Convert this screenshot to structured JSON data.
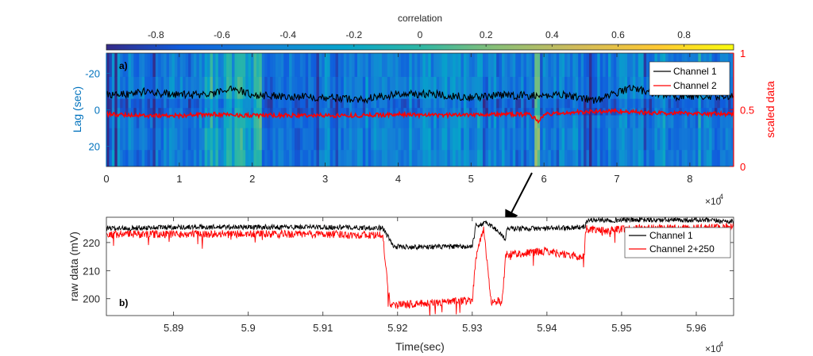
{
  "colors": {
    "axis": "#262626",
    "left_axis": "#0072BD",
    "right_axis": "#FF0000",
    "channel1": "#000000",
    "channel2": "#FF0000",
    "arrow": "#000000"
  },
  "chart_data": [
    {
      "type": "heatmap",
      "panel_label": "a)",
      "colorbar": {
        "title": "correlation",
        "colormap": "parula",
        "range": [
          -0.95,
          0.95
        ],
        "ticks": [
          -0.8,
          -0.6,
          -0.4,
          -0.2,
          0,
          0.2,
          0.4,
          0.6,
          0.8
        ],
        "tick_labels": [
          "-0.8",
          "-0.6",
          "-0.4",
          "-0.2",
          "0",
          "0.2",
          "0.4",
          "0.6",
          "0.8"
        ]
      },
      "x": {
        "range": [
          0,
          86000
        ],
        "ticks": [
          0,
          10000,
          20000,
          30000,
          40000,
          50000,
          60000,
          70000,
          80000
        ],
        "tick_labels": [
          "0",
          "1",
          "2",
          "3",
          "4",
          "5",
          "6",
          "7",
          "8"
        ],
        "exponent": "×10",
        "exponent_power": "4"
      },
      "y_left": {
        "label": "Lag (sec)",
        "range": [
          -31,
          31
        ],
        "reversed": true,
        "ticks": [
          -20,
          0,
          20
        ],
        "tick_labels": [
          "-20",
          "0",
          "20"
        ]
      },
      "y_right": {
        "label": "scaled data",
        "range": [
          0,
          1
        ],
        "ticks": [
          0,
          0.5,
          1
        ],
        "tick_labels": [
          "0",
          "0.5",
          "1"
        ]
      },
      "legend": {
        "position": "top-right"
      },
      "series": [
        {
          "name": "Channel 1",
          "points": [
            [
              0,
              0.64
            ],
            [
              3000,
              0.64
            ],
            [
              5000,
              0.66
            ],
            [
              10000,
              0.63
            ],
            [
              15000,
              0.64
            ],
            [
              17000,
              0.7
            ],
            [
              20000,
              0.63
            ],
            [
              25000,
              0.62
            ],
            [
              30000,
              0.61
            ],
            [
              35000,
              0.59
            ],
            [
              38000,
              0.62
            ],
            [
              40000,
              0.64
            ],
            [
              45000,
              0.64
            ],
            [
              50000,
              0.61
            ],
            [
              55000,
              0.63
            ],
            [
              60000,
              0.62
            ],
            [
              62000,
              0.64
            ],
            [
              65000,
              0.61
            ],
            [
              67000,
              0.58
            ],
            [
              70000,
              0.65
            ],
            [
              72000,
              0.7
            ],
            [
              74000,
              0.66
            ],
            [
              78000,
              0.62
            ],
            [
              82000,
              0.62
            ],
            [
              86000,
              0.62
            ]
          ]
        },
        {
          "name": "Channel 2",
          "points": [
            [
              0,
              0.46
            ],
            [
              5000,
              0.45
            ],
            [
              10000,
              0.45
            ],
            [
              15000,
              0.46
            ],
            [
              20000,
              0.45
            ],
            [
              25000,
              0.45
            ],
            [
              30000,
              0.45
            ],
            [
              35000,
              0.45
            ],
            [
              40000,
              0.46
            ],
            [
              45000,
              0.45
            ],
            [
              50000,
              0.46
            ],
            [
              55000,
              0.46
            ],
            [
              58000,
              0.46
            ],
            [
              59300,
              0.4
            ],
            [
              60000,
              0.46
            ],
            [
              65000,
              0.48
            ],
            [
              70000,
              0.49
            ],
            [
              75000,
              0.47
            ],
            [
              80000,
              0.47
            ],
            [
              86000,
              0.46
            ]
          ]
        }
      ]
    },
    {
      "type": "line",
      "panel_label": "b)",
      "x": {
        "label": "Time(sec)",
        "range": [
          58810,
          59650
        ],
        "ticks": [
          58900,
          59000,
          59100,
          59200,
          59300,
          59400,
          59500,
          59600
        ],
        "tick_labels": [
          "5.89",
          "5.9",
          "5.91",
          "5.92",
          "5.93",
          "5.94",
          "5.95",
          "5.96"
        ],
        "exponent": "×10",
        "exponent_power": "4"
      },
      "y": {
        "label": "raw data (mV)",
        "range": [
          194,
          229
        ],
        "ticks": [
          200,
          210,
          220
        ],
        "tick_labels": [
          "200",
          "210",
          "220"
        ]
      },
      "legend": {
        "position": "top-right"
      },
      "series": [
        {
          "name": "Channel 1",
          "points": [
            [
              58810,
              225
            ],
            [
              58900,
              225.5
            ],
            [
              59000,
              225.5
            ],
            [
              59100,
              225.5
            ],
            [
              59180,
              225.2
            ],
            [
              59195,
              218.5
            ],
            [
              59250,
              218.5
            ],
            [
              59300,
              218.5
            ],
            [
              59305,
              226
            ],
            [
              59320,
              227
            ],
            [
              59335,
              224
            ],
            [
              59345,
              221
            ],
            [
              59346,
              225
            ],
            [
              59400,
              225
            ],
            [
              59450,
              225.5
            ],
            [
              59455,
              228
            ],
            [
              59500,
              228
            ],
            [
              59600,
              228
            ],
            [
              59650,
              227.5
            ]
          ]
        },
        {
          "name": "Channel 2+250",
          "points": [
            [
              58810,
              223
            ],
            [
              58900,
              223
            ],
            [
              59000,
              223
            ],
            [
              59100,
              223
            ],
            [
              59180,
              222.5
            ],
            [
              59190,
              197.5
            ],
            [
              59210,
              198
            ],
            [
              59250,
              198.5
            ],
            [
              59300,
              199.5
            ],
            [
              59305,
              215
            ],
            [
              59315,
              225
            ],
            [
              59320,
              213
            ],
            [
              59325,
              199
            ],
            [
              59340,
              199
            ],
            [
              59345,
              216
            ],
            [
              59360,
              216
            ],
            [
              59400,
              217
            ],
            [
              59440,
              215
            ],
            [
              59450,
              215
            ],
            [
              59452,
              225
            ],
            [
              59480,
              224
            ],
            [
              59500,
              225
            ],
            [
              59600,
              225
            ],
            [
              59650,
              225.5
            ]
          ]
        }
      ]
    }
  ]
}
